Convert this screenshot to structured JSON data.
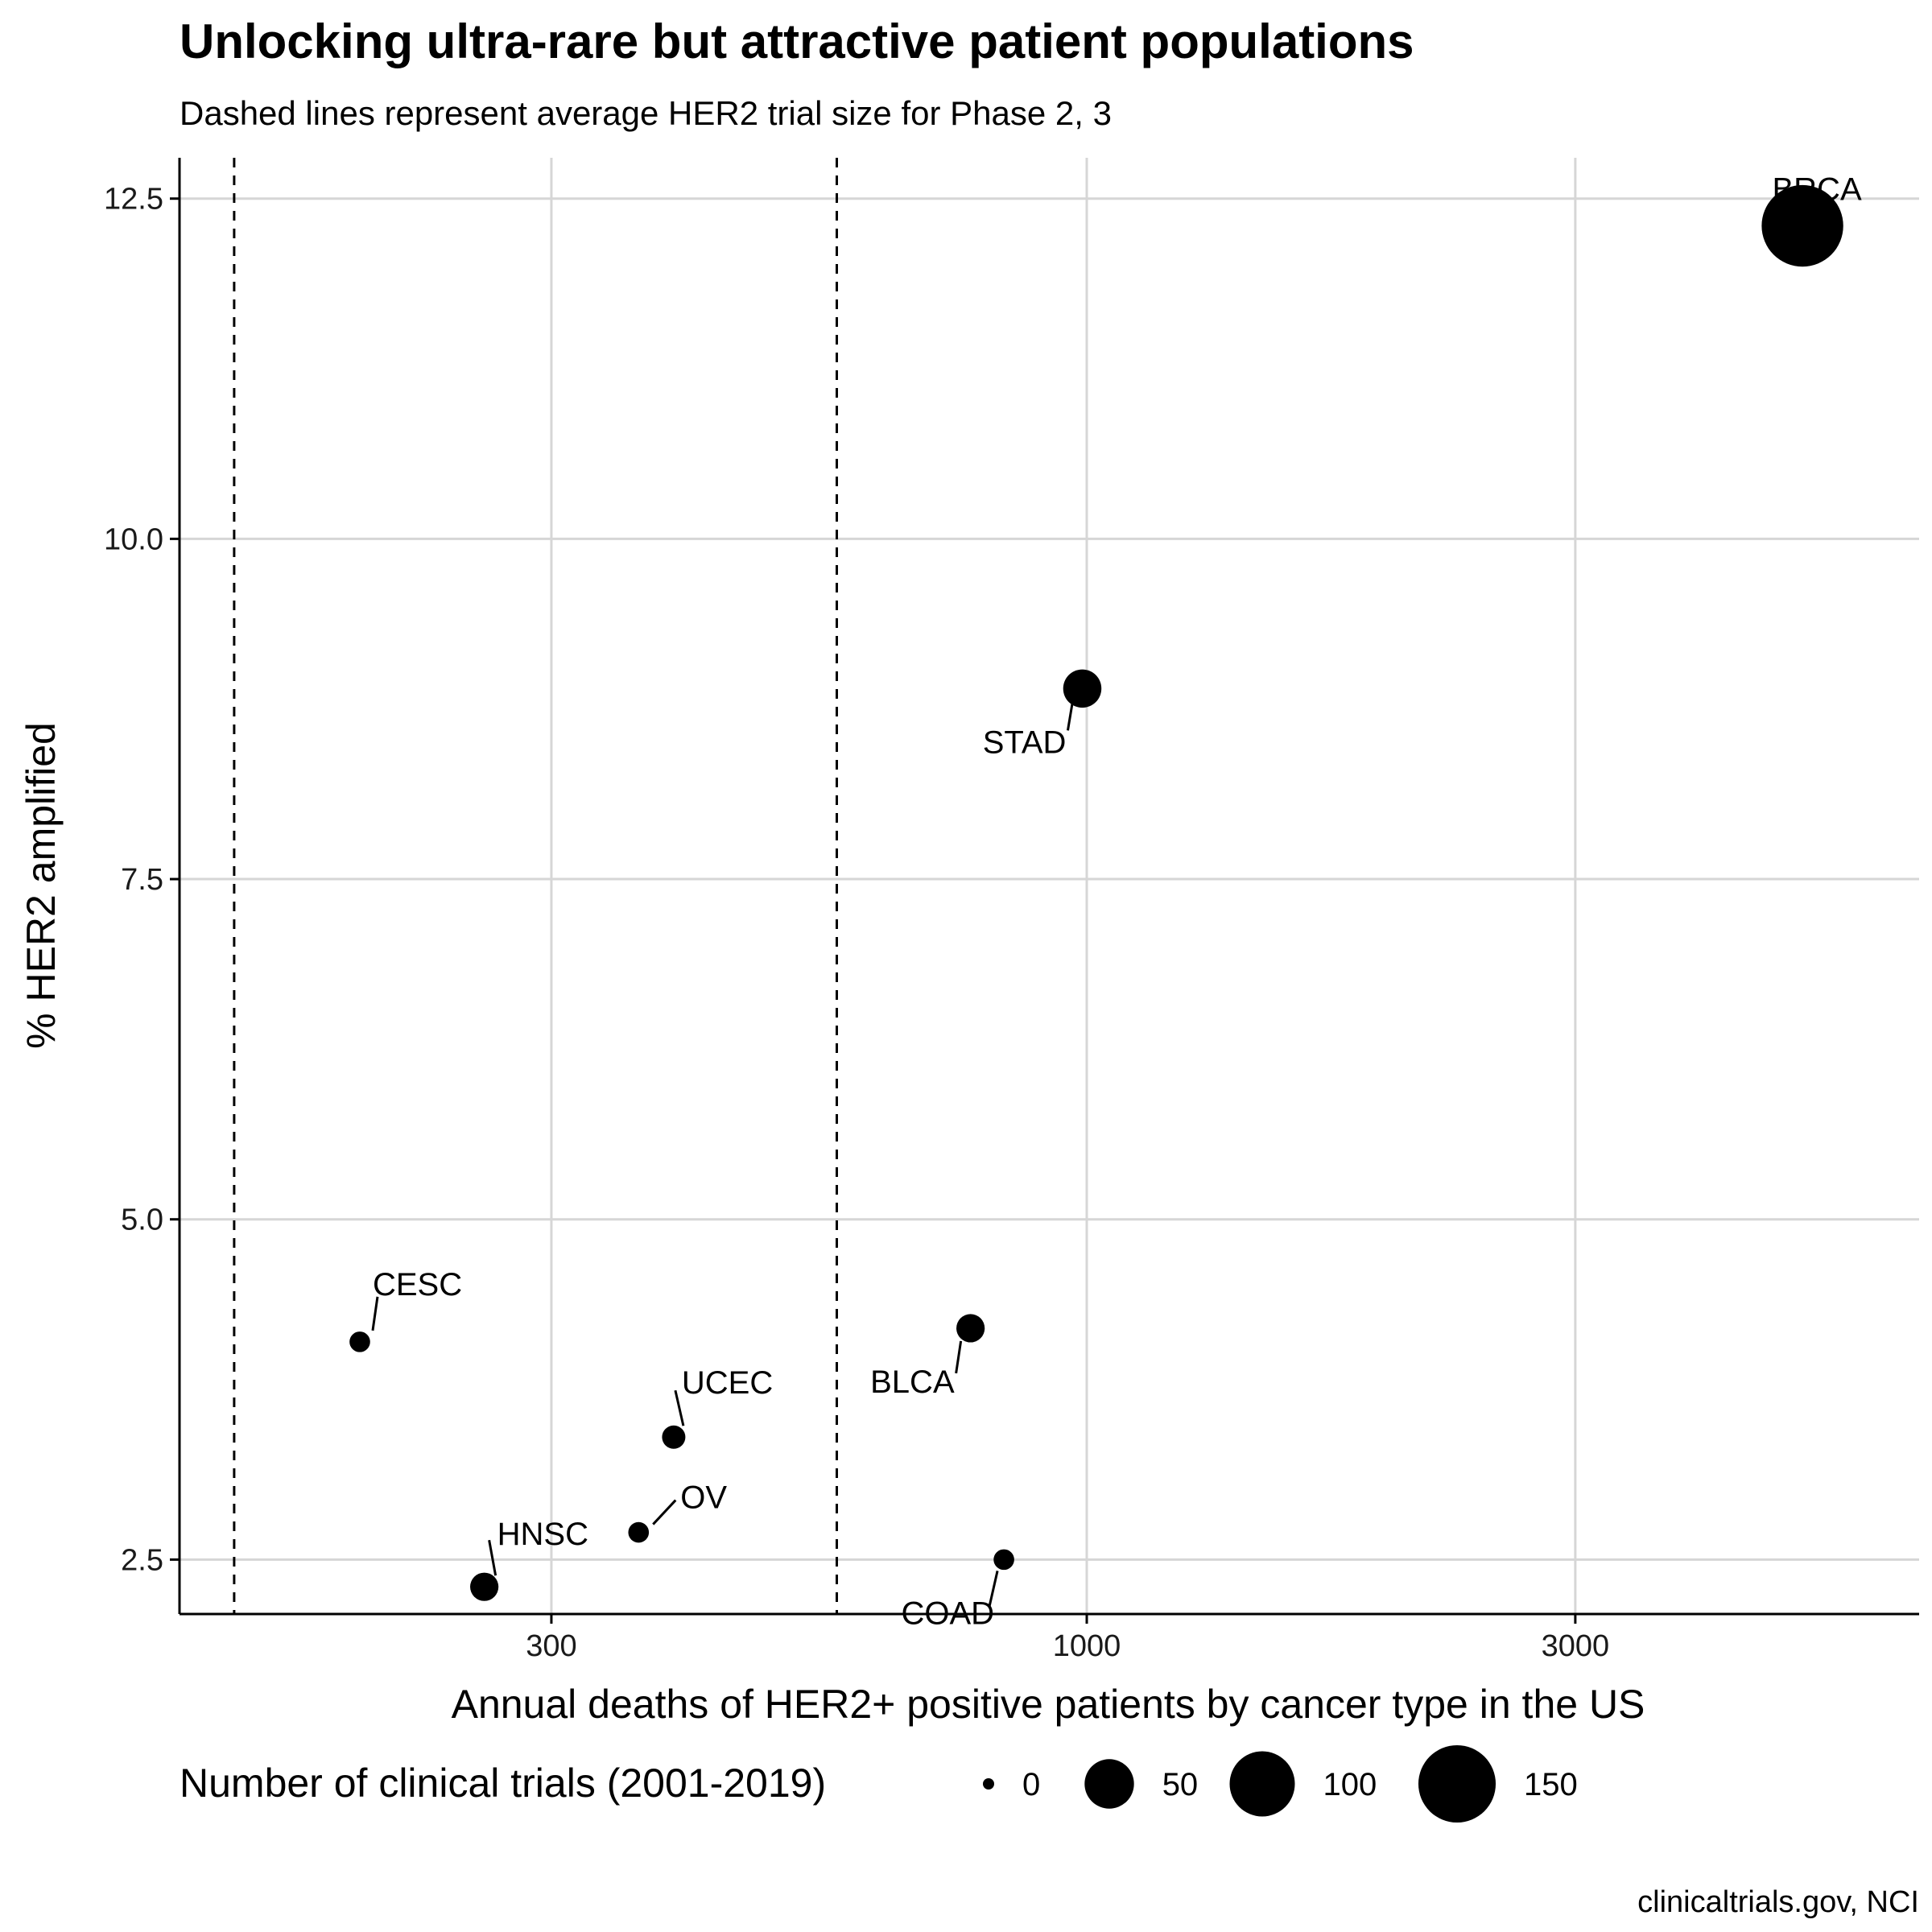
{
  "chart_data": {
    "type": "scatter",
    "title": "Unlocking ultra-rare but attractive patient populations",
    "subtitle": "Dashed lines represent average HER2 trial size for Phase 2, 3",
    "xlabel": "Annual deaths of HER2+ positive patients by cancer type in the US",
    "ylabel": "% HER2 amplified",
    "caption": "clinicaltrials.gov, NCI",
    "x_scale": "log10",
    "xlim": [
      130,
      6500
    ],
    "ylim": [
      2.1,
      12.8
    ],
    "x_ticks": [
      300,
      1000,
      3000
    ],
    "x_tick_labels": [
      "300",
      "1000",
      "3000"
    ],
    "y_ticks": [
      2.5,
      5.0,
      7.5,
      10.0,
      12.5
    ],
    "y_tick_labels": [
      "2.5",
      "5.0",
      "7.5",
      "10.0",
      "12.5"
    ],
    "reference_lines_x": [
      147,
      570
    ],
    "grid": true,
    "legend": {
      "title": "Number of clinical trials (2001-2019)",
      "placement": "bottom",
      "entries": [
        {
          "label": "0",
          "value": 0
        },
        {
          "label": "50",
          "value": 50
        },
        {
          "label": "100",
          "value": 100
        },
        {
          "label": "150",
          "value": 150
        }
      ]
    },
    "points": [
      {
        "label": "BRCA",
        "x": 5000,
        "y": 12.3,
        "trials": 170
      },
      {
        "label": "STAD",
        "x": 990,
        "y": 8.9,
        "trials": 25
      },
      {
        "label": "BLCA",
        "x": 770,
        "y": 4.2,
        "trials": 10
      },
      {
        "label": "CESC",
        "x": 195,
        "y": 4.1,
        "trials": 3
      },
      {
        "label": "UCEC",
        "x": 395,
        "y": 3.4,
        "trials": 5
      },
      {
        "label": "OV",
        "x": 365,
        "y": 2.7,
        "trials": 3
      },
      {
        "label": "HNSC",
        "x": 258,
        "y": 2.3,
        "trials": 10
      },
      {
        "label": "COAD",
        "x": 830,
        "y": 2.5,
        "trials": 3
      }
    ]
  }
}
